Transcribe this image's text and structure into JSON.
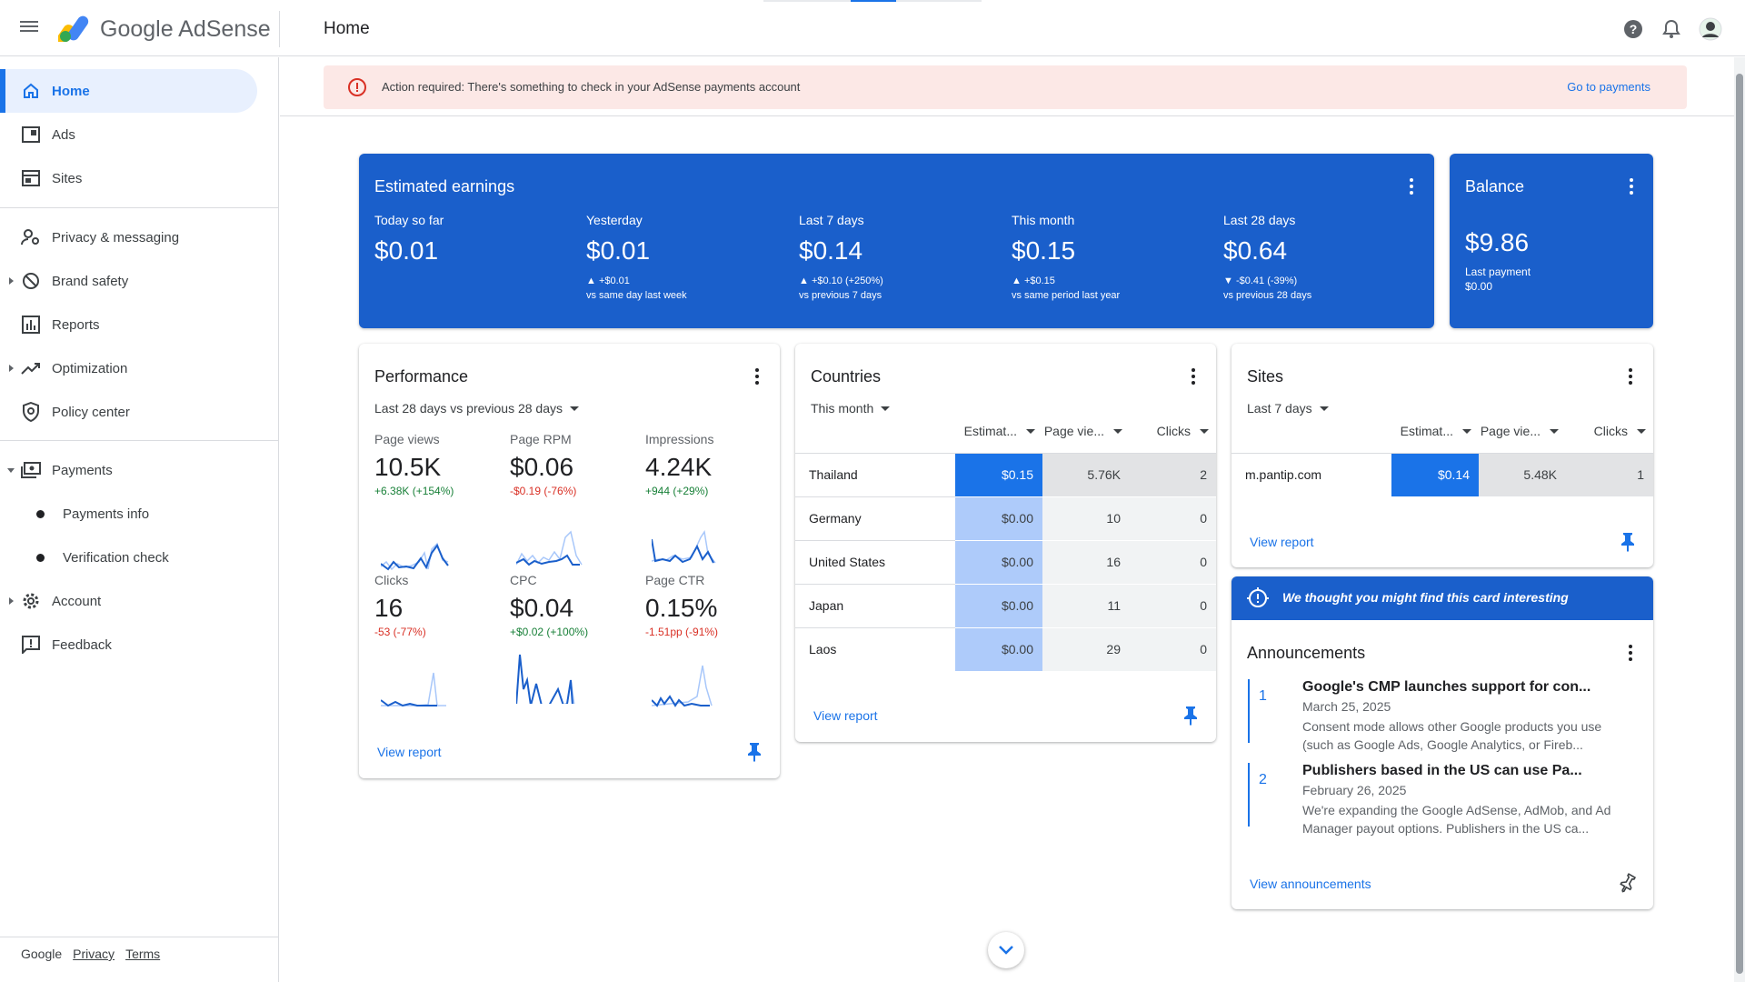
{
  "app": {
    "brand": "Google AdSense",
    "page_title": "Home"
  },
  "sidebar": {
    "items": [
      {
        "label": "Home",
        "icon": "home-icon"
      },
      {
        "label": "Ads",
        "icon": "ads-icon"
      },
      {
        "label": "Sites",
        "icon": "sites-icon"
      },
      {
        "label": "Privacy & messaging",
        "icon": "privacy-icon"
      },
      {
        "label": "Brand safety",
        "icon": "block-icon"
      },
      {
        "label": "Reports",
        "icon": "bar-chart-icon"
      },
      {
        "label": "Optimization",
        "icon": "trend-icon"
      },
      {
        "label": "Policy center",
        "icon": "shield-icon"
      },
      {
        "label": "Payments",
        "icon": "payments-icon"
      },
      {
        "label": "Payments info"
      },
      {
        "label": "Verification check"
      },
      {
        "label": "Account",
        "icon": "gear-icon"
      },
      {
        "label": "Feedback",
        "icon": "feedback-icon"
      }
    ],
    "footer": {
      "google": "Google",
      "privacy": "Privacy",
      "terms": "Terms"
    }
  },
  "banner": {
    "text": "Action required: There's something to check in your AdSense payments account",
    "action": "Go to payments"
  },
  "earnings": {
    "title": "Estimated earnings",
    "periods": [
      {
        "label": "Today so far",
        "value": "$0.01",
        "change": "",
        "compare": ""
      },
      {
        "label": "Yesterday",
        "value": "$0.01",
        "change": "▲ +$0.01",
        "compare": "vs same day last week"
      },
      {
        "label": "Last 7 days",
        "value": "$0.14",
        "change": "▲ +$0.10 (+250%)",
        "compare": "vs previous 7 days"
      },
      {
        "label": "This month",
        "value": "$0.15",
        "change": "▲ +$0.15",
        "compare": "vs same period last year"
      },
      {
        "label": "Last 28 days",
        "value": "$0.64",
        "change": "▼ -$0.41 (-39%)",
        "compare": "vs previous 28 days"
      }
    ]
  },
  "balance": {
    "title": "Balance",
    "value": "$9.86",
    "last_payment_label": "Last payment",
    "last_payment_value": "$0.00"
  },
  "performance": {
    "title": "Performance",
    "range": "Last 28 days vs previous 28 days",
    "metrics": [
      {
        "label": "Page views",
        "value": "10.5K",
        "change": "+6.38K (+154%)",
        "trend": "up"
      },
      {
        "label": "Page RPM",
        "value": "$0.06",
        "change": "-$0.19 (-76%)",
        "trend": "down"
      },
      {
        "label": "Impressions",
        "value": "4.24K",
        "change": "+944 (+29%)",
        "trend": "up"
      },
      {
        "label": "Clicks",
        "value": "16",
        "change": "-53 (-77%)",
        "trend": "down"
      },
      {
        "label": "CPC",
        "value": "$0.04",
        "change": "+$0.02 (+100%)",
        "trend": "up"
      },
      {
        "label": "Page CTR",
        "value": "0.15%",
        "change": "-1.51pp (-91%)",
        "trend": "down"
      }
    ],
    "view_report": "View report"
  },
  "countries": {
    "title": "Countries",
    "range": "This month",
    "columns": [
      "Estimat...",
      "Page vie...",
      "Clicks"
    ],
    "rows": [
      {
        "name": "Thailand",
        "earnings": "$0.15",
        "pageviews": "5.76K",
        "clicks": "2"
      },
      {
        "name": "Germany",
        "earnings": "$0.00",
        "pageviews": "10",
        "clicks": "0"
      },
      {
        "name": "United States",
        "earnings": "$0.00",
        "pageviews": "16",
        "clicks": "0"
      },
      {
        "name": "Japan",
        "earnings": "$0.00",
        "pageviews": "11",
        "clicks": "0"
      },
      {
        "name": "Laos",
        "earnings": "$0.00",
        "pageviews": "29",
        "clicks": "0"
      }
    ],
    "view_report": "View report"
  },
  "sites": {
    "title": "Sites",
    "range": "Last 7 days",
    "columns": [
      "Estimat...",
      "Page vie...",
      "Clicks"
    ],
    "rows": [
      {
        "name": "m.pantip.com",
        "earnings": "$0.14",
        "pageviews": "5.48K",
        "clicks": "1"
      }
    ],
    "view_report": "View report"
  },
  "tip": {
    "text": "We thought you might find this card interesting"
  },
  "announcements": {
    "title": "Announcements",
    "items": [
      {
        "num": "1",
        "title": "Google's CMP launches support for con...",
        "date": "March 25, 2025",
        "body": "Consent mode allows other Google products you use (such as Google Ads, Google Analytics, or Fireb..."
      },
      {
        "num": "2",
        "title": "Publishers based in the US can use Pa...",
        "date": "February 26, 2025",
        "body": "We're expanding the Google AdSense, AdMob, and Ad Manager payout options. Publishers in the US ca..."
      }
    ],
    "view_all": "View announcements"
  },
  "colors": {
    "accent": "#1a73e8",
    "card_blue": "#1a5fcb",
    "banner_bg": "#fce8e6",
    "up": "#188038",
    "down": "#d93025"
  }
}
